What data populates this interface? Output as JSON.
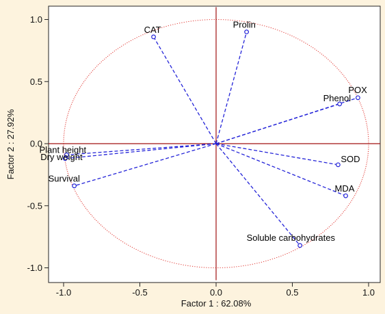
{
  "chart_data": {
    "type": "scatter",
    "subtype": "pca-correlation-circle",
    "title": "",
    "xlabel": "Factor 1 : 62.08%",
    "ylabel": "Factor 2 : 27.92%",
    "xlim": [
      -1.1,
      1.1
    ],
    "ylim": [
      -1.1,
      1.1
    ],
    "x_ticks": [
      "-1.0",
      "-0.5",
      "0.0",
      "0.5",
      "1.0"
    ],
    "y_ticks": [
      "1.0",
      "0.5",
      "0.0",
      "-0.5",
      "-1.0"
    ],
    "grid": false,
    "circle_radius": 1.0,
    "colors": {
      "background": "#fdf3de",
      "plot_area": "#ffffff",
      "vectors": "#2323d8",
      "circle": "#e0302a",
      "zero_lines": "#a01010"
    },
    "points": [
      {
        "name": "CAT",
        "x": -0.41,
        "y": 0.86
      },
      {
        "name": "Prolin",
        "x": 0.2,
        "y": 0.9
      },
      {
        "name": "POX",
        "x": 0.93,
        "y": 0.37
      },
      {
        "name": "Phenol",
        "x": 0.81,
        "y": 0.32
      },
      {
        "name": "Plant height",
        "x": -0.98,
        "y": -0.09
      },
      {
        "name": "Dry weight",
        "x": -0.99,
        "y": -0.12
      },
      {
        "name": "Survival",
        "x": -0.93,
        "y": -0.34
      },
      {
        "name": "SOD",
        "x": 0.8,
        "y": -0.17
      },
      {
        "name": "MDA",
        "x": 0.85,
        "y": -0.42
      },
      {
        "name": "Soluble carbohydrates",
        "x": 0.55,
        "y": -0.82
      }
    ]
  }
}
